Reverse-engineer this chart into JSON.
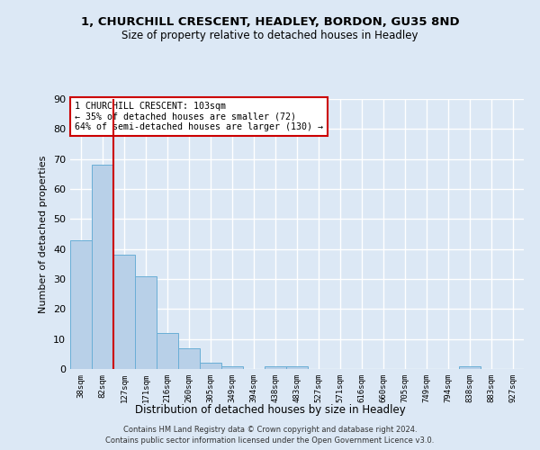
{
  "title1": "1, CHURCHILL CRESCENT, HEADLEY, BORDON, GU35 8ND",
  "title2": "Size of property relative to detached houses in Headley",
  "xlabel": "Distribution of detached houses by size in Headley",
  "ylabel": "Number of detached properties",
  "categories": [
    "38sqm",
    "82sqm",
    "127sqm",
    "171sqm",
    "216sqm",
    "260sqm",
    "305sqm",
    "349sqm",
    "394sqm",
    "438sqm",
    "483sqm",
    "527sqm",
    "571sqm",
    "616sqm",
    "660sqm",
    "705sqm",
    "749sqm",
    "794sqm",
    "838sqm",
    "883sqm",
    "927sqm"
  ],
  "values": [
    43,
    68,
    38,
    31,
    12,
    7,
    2,
    1,
    0,
    1,
    1,
    0,
    0,
    0,
    0,
    0,
    0,
    0,
    1,
    0,
    0
  ],
  "bar_color": "#b8d0e8",
  "bar_edge_color": "#6aaed6",
  "vline_x": 1.5,
  "vline_color": "#cc0000",
  "annotation_lines": [
    "1 CHURCHILL CRESCENT: 103sqm",
    "← 35% of detached houses are smaller (72)",
    "64% of semi-detached houses are larger (130) →"
  ],
  "annotation_box_color": "#ffffff",
  "annotation_box_edge": "#cc0000",
  "ylim": [
    0,
    90
  ],
  "yticks": [
    0,
    10,
    20,
    30,
    40,
    50,
    60,
    70,
    80,
    90
  ],
  "footer1": "Contains HM Land Registry data © Crown copyright and database right 2024.",
  "footer2": "Contains public sector information licensed under the Open Government Licence v3.0.",
  "background_color": "#dce8f5",
  "grid_color": "#ffffff"
}
